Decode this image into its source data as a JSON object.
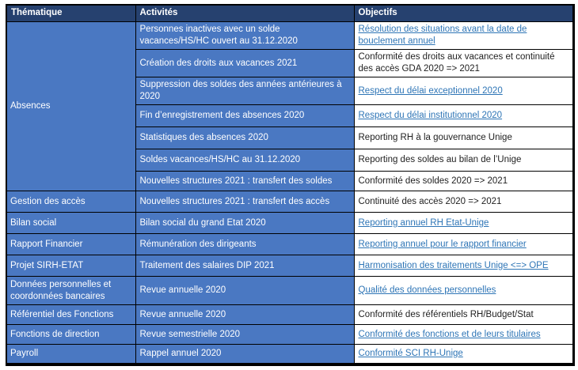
{
  "colors": {
    "header_bg": "#26416F",
    "cell_bg": "#4A78C2",
    "cell_text": "#FFFFFF",
    "link_color": "#2E75B6",
    "plain_text": "#1F1F1F",
    "border_color": "#000000",
    "page_bg": "#FFFFFF"
  },
  "table": {
    "headers": [
      "Thématique",
      "Activités",
      "Objectifs"
    ],
    "rows": [
      {
        "theme": "Absences",
        "theme_rowspan": 7,
        "activity": "Personnes inactives avec un solde vacances/HS/HC ouvert au 31.12.2020",
        "objective": "Résolution des situations avant la date de bouclement annuel",
        "objective_is_link": true
      },
      {
        "activity": "Création des droits aux vacances 2021",
        "objective": "Conformité des droits aux vacances et continuité des accès GDA 2020 => 2021",
        "objective_is_link": false
      },
      {
        "activity": "Suppression des soldes des années antérieures à 2020",
        "objective": "Respect du délai exceptionnel 2020",
        "objective_is_link": true
      },
      {
        "activity": "Fin d’enregistrement des absences 2020",
        "objective": "Respect du délai institutionnel 2020",
        "objective_is_link": true
      },
      {
        "activity": "Statistiques des absences 2020",
        "objective": "Reporting RH à la gouvernance Unige",
        "objective_is_link": false
      },
      {
        "activity": "Soldes vacances/HS/HC au 31.12.2020",
        "objective": "Reporting des soldes au bilan de l’Unige",
        "objective_is_link": false
      },
      {
        "activity": "Nouvelles structures 2021 : transfert des soldes",
        "objective": "Conformité des soldes 2020 => 2021",
        "objective_is_link": false
      },
      {
        "theme": "Gestion des accès",
        "theme_rowspan": 1,
        "activity": "Nouvelles structures 2021 : transfert des accès",
        "objective": "Continuité des accès 2020 => 2021",
        "objective_is_link": false
      },
      {
        "theme": "Bilan social",
        "theme_rowspan": 1,
        "activity": "Bilan social du grand Etat 2020",
        "objective": "Reporting annuel RH Etat-Unige",
        "objective_is_link": true
      },
      {
        "theme": "Rapport Financier",
        "theme_rowspan": 1,
        "activity": "Rémunération des dirigeants",
        "objective": "Reporting annuel pour le rapport financier",
        "objective_is_link": true
      },
      {
        "theme": "Projet SIRH-ETAT",
        "theme_rowspan": 1,
        "activity": "Traitement des salaires DIP 2021",
        "objective": "Harmonisation des traitements Unige <=> OPE",
        "objective_is_link": true
      },
      {
        "theme": "Données personnelles et coordonnées bancaires",
        "theme_rowspan": 1,
        "activity": "Revue annuelle 2020",
        "objective": "Qualité des données personnelles",
        "objective_is_link": true
      },
      {
        "theme": "Référentiel des Fonctions",
        "theme_rowspan": 1,
        "activity": "Revue annuelle 2020",
        "objective": "Conformité des référentiels RH/Budget/Stat",
        "objective_is_link": false
      },
      {
        "theme": "Fonctions de direction",
        "theme_rowspan": 1,
        "activity": "Revue semestrielle 2020",
        "objective": "Conformité des fonctions et de leurs titulaires",
        "objective_is_link": true
      },
      {
        "theme": "Payroll",
        "theme_rowspan": 1,
        "activity": "Rappel annuel 2020",
        "objective": "Conformité SCI RH-Unige",
        "objective_is_link": true
      }
    ]
  }
}
